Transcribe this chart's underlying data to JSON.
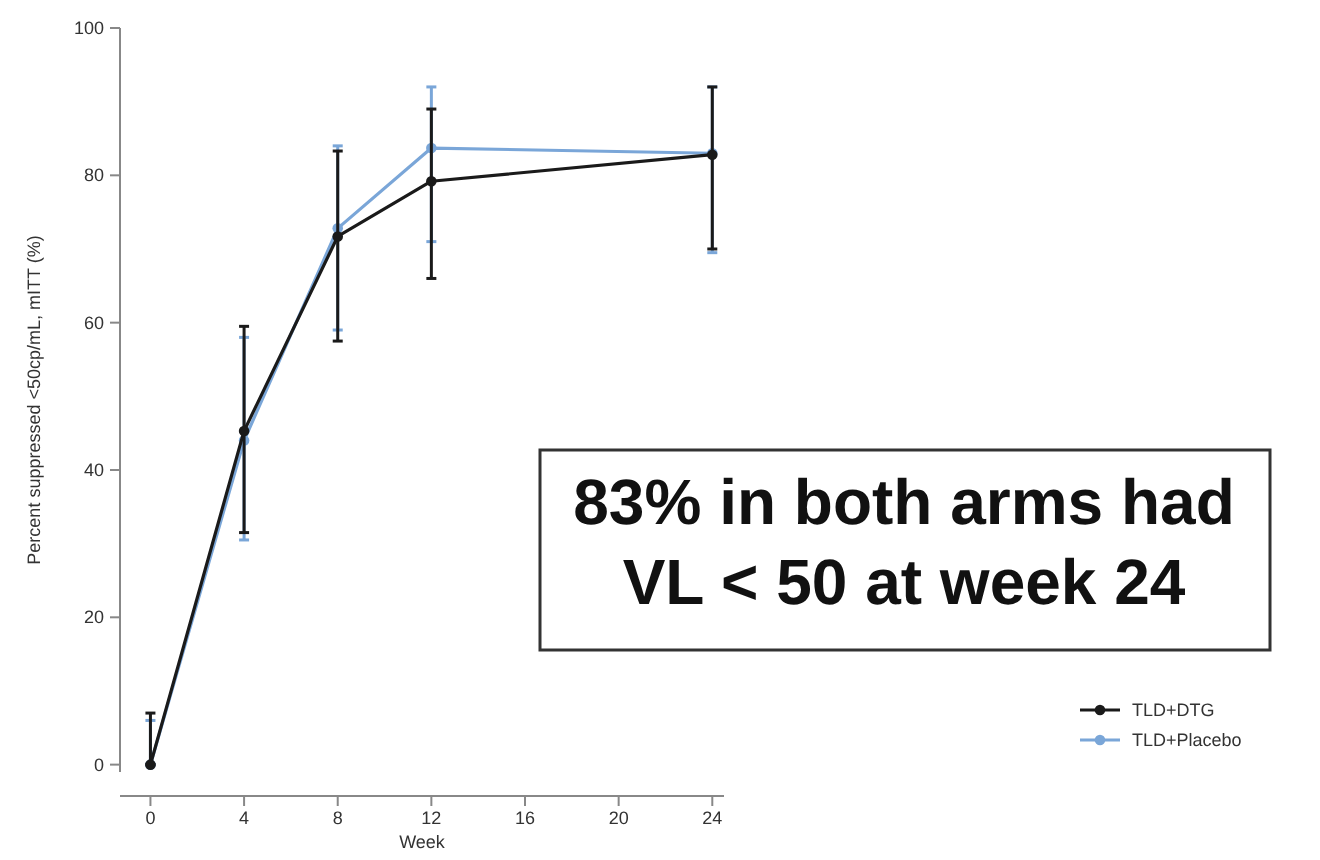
{
  "chart_data": {
    "type": "line",
    "xlabel": "Week",
    "ylabel": "Percent suppressed <50cp/mL, mITT (%)",
    "x": [
      0,
      4,
      8,
      12,
      24
    ],
    "series": [
      {
        "name": "TLD+DTG",
        "color": "#1a1a1a",
        "values": [
          0,
          45.3,
          71.7,
          79.2,
          82.8
        ],
        "errors": [
          [
            0,
            7
          ],
          [
            31.5,
            59.5
          ],
          [
            57.5,
            83.3
          ],
          [
            66,
            89
          ],
          [
            70,
            92
          ]
        ]
      },
      {
        "name": "TLD+Placebo",
        "color": "#7aa6d8",
        "values": [
          0,
          44,
          72.8,
          83.7,
          83
        ],
        "errors": [
          [
            0,
            6
          ],
          [
            30.5,
            58
          ],
          [
            59,
            84
          ],
          [
            71,
            92
          ],
          [
            69.5,
            92
          ]
        ]
      }
    ],
    "xlim": [
      -1.3,
      24.5
    ],
    "xticks": [
      0,
      4,
      8,
      12,
      16,
      20,
      24
    ],
    "ylim": [
      -1,
      100
    ],
    "yticks": [
      0,
      20,
      40,
      60,
      80,
      100
    ],
    "marker": "circle",
    "legend": "bottom right",
    "annotations": [
      "83% in both arms had\nVL < 50 at week 24"
    ]
  }
}
